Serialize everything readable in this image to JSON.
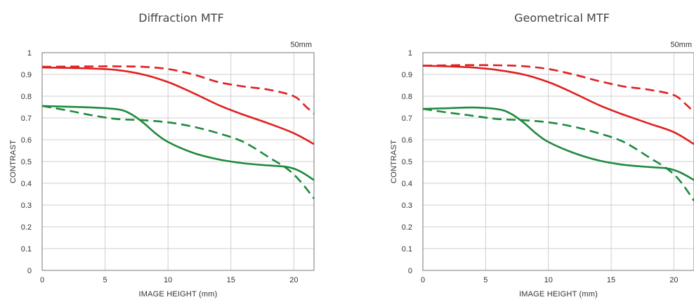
{
  "charts": [
    {
      "title": "Diffraction MTF",
      "focal": "50mm",
      "chart_data": {
        "type": "line",
        "title": "Diffraction MTF",
        "xlabel": "IMAGE HEIGHT (mm)",
        "ylabel": "CONTRAST",
        "xlim": [
          0,
          21.6
        ],
        "ylim": [
          0,
          1
        ],
        "xticks": [
          0,
          5,
          10,
          15,
          20
        ],
        "yticks": [
          0,
          0.1,
          0.2,
          0.3,
          0.4,
          0.5,
          0.6,
          0.7,
          0.8,
          0.9,
          1
        ],
        "xtick_labels": [
          "0",
          "5",
          "10",
          "15",
          "20"
        ],
        "ytick_labels": [
          "0",
          "0.1",
          "0.2",
          "0.3",
          "0.4",
          "0.5",
          "0.6",
          "0.7",
          "0.8",
          "0.9",
          "1"
        ],
        "grid": true,
        "annotation": "50mm",
        "series": [
          {
            "color": "#e02020",
            "dash": "solid",
            "x": [
              0,
              2,
              4,
              6,
              8,
              10,
              12,
              14,
              16,
              18,
              20,
              21.6
            ],
            "y": [
              0.932,
              0.93,
              0.927,
              0.92,
              0.9,
              0.865,
              0.815,
              0.76,
              0.715,
              0.675,
              0.63,
              0.58
            ]
          },
          {
            "color": "#e02020",
            "dash": "dashed",
            "x": [
              0,
              2,
              4,
              6,
              8,
              10,
              12,
              14,
              16,
              18,
              20,
              21,
              21.6
            ],
            "y": [
              0.935,
              0.936,
              0.937,
              0.937,
              0.935,
              0.925,
              0.9,
              0.865,
              0.845,
              0.83,
              0.8,
              0.75,
              0.72
            ]
          },
          {
            "color": "#1e8a3e",
            "dash": "solid",
            "x": [
              0,
              2,
              4,
              6,
              7,
              8,
              9,
              10,
              12,
              14,
              16,
              18,
              19.5,
              20.5,
              21.6
            ],
            "y": [
              0.755,
              0.752,
              0.748,
              0.74,
              0.72,
              0.68,
              0.63,
              0.59,
              0.54,
              0.51,
              0.492,
              0.482,
              0.475,
              0.455,
              0.415
            ]
          },
          {
            "color": "#1e8a3e",
            "dash": "dashed",
            "x": [
              0,
              2,
              4,
              6,
              8,
              10,
              12,
              14,
              16,
              18,
              19.5,
              20.5,
              21.6
            ],
            "y": [
              0.755,
              0.735,
              0.712,
              0.695,
              0.69,
              0.68,
              0.66,
              0.63,
              0.59,
              0.52,
              0.465,
              0.41,
              0.33
            ]
          }
        ]
      }
    },
    {
      "title": "Geometrical MTF",
      "focal": "50mm",
      "chart_data": {
        "type": "line",
        "title": "Geometrical MTF",
        "xlabel": "IMAGE HEIGHT (mm)",
        "ylabel": "CONTRAST",
        "xlim": [
          0,
          21.6
        ],
        "ylim": [
          0,
          1
        ],
        "xticks": [
          0,
          5,
          10,
          15,
          20
        ],
        "yticks": [
          0,
          0.1,
          0.2,
          0.3,
          0.4,
          0.5,
          0.6,
          0.7,
          0.8,
          0.9,
          1
        ],
        "xtick_labels": [
          "0",
          "5",
          "10",
          "15",
          "20"
        ],
        "ytick_labels": [
          "0",
          "0.1",
          "0.2",
          "0.3",
          "0.4",
          "0.5",
          "0.6",
          "0.7",
          "0.8",
          "0.9",
          "1"
        ],
        "grid": true,
        "annotation": "50mm",
        "series": [
          {
            "color": "#e02020",
            "dash": "solid",
            "x": [
              0,
              2,
              4,
              6,
              8,
              10,
              12,
              14,
              16,
              18,
              20,
              21.6
            ],
            "y": [
              0.94,
              0.937,
              0.932,
              0.92,
              0.9,
              0.865,
              0.815,
              0.76,
              0.715,
              0.675,
              0.635,
              0.58
            ]
          },
          {
            "color": "#e02020",
            "dash": "dashed",
            "x": [
              0,
              2,
              4,
              6,
              8,
              10,
              12,
              14,
              16,
              18,
              20,
              21,
              21.6
            ],
            "y": [
              0.94,
              0.942,
              0.943,
              0.942,
              0.938,
              0.925,
              0.9,
              0.87,
              0.845,
              0.83,
              0.805,
              0.76,
              0.725
            ]
          },
          {
            "color": "#1e8a3e",
            "dash": "solid",
            "x": [
              0,
              2,
              4,
              6,
              7,
              8,
              9,
              10,
              12,
              14,
              16,
              18,
              19.5,
              20.5,
              21.6
            ],
            "y": [
              0.742,
              0.745,
              0.748,
              0.74,
              0.72,
              0.68,
              0.63,
              0.59,
              0.54,
              0.505,
              0.485,
              0.475,
              0.468,
              0.45,
              0.415
            ]
          },
          {
            "color": "#1e8a3e",
            "dash": "dashed",
            "x": [
              0,
              2,
              4,
              6,
              8,
              10,
              12,
              14,
              16,
              18,
              19.5,
              20.5,
              21.6
            ],
            "y": [
              0.742,
              0.725,
              0.71,
              0.695,
              0.69,
              0.68,
              0.66,
              0.63,
              0.59,
              0.52,
              0.465,
              0.41,
              0.32
            ]
          }
        ]
      }
    }
  ]
}
